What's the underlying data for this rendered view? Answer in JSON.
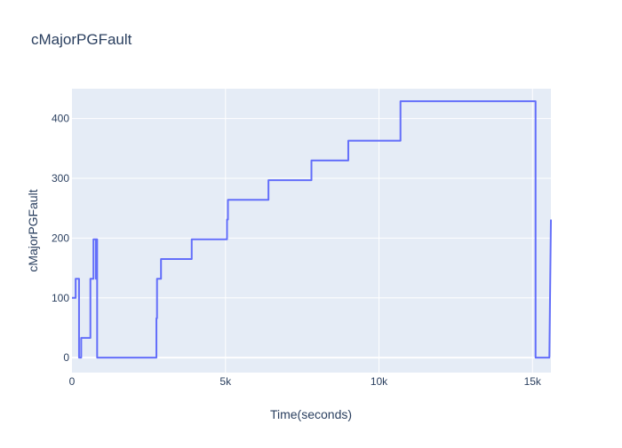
{
  "chart_data": {
    "type": "line",
    "title": "cMajorPGFault",
    "xlabel": "Time(seconds)",
    "ylabel": "cMajorPGFault",
    "xlim": [
      0,
      15600
    ],
    "ylim": [
      -25,
      450
    ],
    "x_ticks": [
      0,
      5000,
      10000,
      15000
    ],
    "x_tick_labels": [
      "0",
      "5k",
      "10k",
      "15k"
    ],
    "y_ticks": [
      0,
      100,
      200,
      300,
      400
    ],
    "y_tick_labels": [
      "0",
      "100",
      "200",
      "300",
      "400"
    ],
    "grid": true,
    "legend": "none",
    "series": [
      {
        "color": "#636efa",
        "step_points": [
          [
            0,
            100
          ],
          [
            120,
            100
          ],
          [
            120,
            132
          ],
          [
            230,
            132
          ],
          [
            230,
            0
          ],
          [
            300,
            0
          ],
          [
            300,
            33
          ],
          [
            600,
            33
          ],
          [
            600,
            132
          ],
          [
            700,
            132
          ],
          [
            700,
            198
          ],
          [
            780,
            198
          ],
          [
            780,
            132
          ],
          [
            800,
            132
          ],
          [
            800,
            198
          ],
          [
            820,
            198
          ],
          [
            820,
            0
          ],
          [
            2750,
            0
          ],
          [
            2750,
            66
          ],
          [
            2770,
            66
          ],
          [
            2770,
            132
          ],
          [
            2900,
            132
          ],
          [
            2900,
            165
          ],
          [
            3900,
            165
          ],
          [
            3900,
            198
          ],
          [
            5050,
            198
          ],
          [
            5050,
            231
          ],
          [
            5080,
            231
          ],
          [
            5080,
            264
          ],
          [
            6400,
            264
          ],
          [
            6400,
            297
          ],
          [
            7800,
            297
          ],
          [
            7800,
            330
          ],
          [
            9000,
            330
          ],
          [
            9000,
            363
          ],
          [
            10700,
            363
          ],
          [
            10700,
            429
          ],
          [
            15100,
            429
          ],
          [
            15100,
            0
          ],
          [
            15550,
            0
          ],
          [
            15600,
            231
          ]
        ]
      }
    ],
    "colors": {
      "plot_bg": "#e5ecf6",
      "grid": "#ffffff",
      "text": "#2a3f5f",
      "line": "#636efa"
    }
  }
}
